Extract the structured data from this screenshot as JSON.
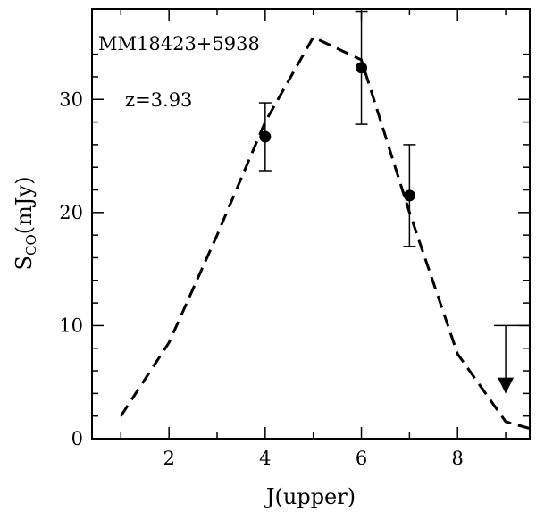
{
  "chart_data": {
    "type": "scatter",
    "xlabel": "J(upper)",
    "ylabel": {
      "main": "S",
      "subscript": "CO",
      "units": "(mJy)"
    },
    "xlim": [
      0.4,
      9.5
    ],
    "ylim": [
      0,
      38
    ],
    "x_ticks": [
      2,
      4,
      6,
      8
    ],
    "y_ticks": [
      0,
      10,
      20,
      30
    ],
    "x_tick_labels": [
      "2",
      "4",
      "6",
      "8"
    ],
    "y_tick_labels": [
      "0",
      "10",
      "20",
      "30"
    ],
    "grid": false,
    "legend": "none",
    "annotations": [
      {
        "text": "MM18423+5938"
      },
      {
        "text": "z=3.93"
      }
    ],
    "series": [
      {
        "kind": "dashed-line",
        "x": [
          1,
          2,
          3,
          4,
          5,
          6,
          7,
          8,
          9,
          9.5
        ],
        "y": [
          2,
          8.5,
          18,
          28,
          35.5,
          33.5,
          20,
          7.5,
          1.5,
          0.9
        ]
      },
      {
        "kind": "points-with-error-bars",
        "points": [
          {
            "x": 4,
            "y": 26.7,
            "err_low": 3,
            "err_high": 3
          },
          {
            "x": 6,
            "y": 32.8,
            "err_low": 5,
            "err_high": 5
          },
          {
            "x": 7,
            "y": 21.5,
            "err_low": 4.5,
            "err_high": 4.5
          }
        ]
      },
      {
        "kind": "upper-limit",
        "points": [
          {
            "x": 9,
            "y": 10,
            "arrow_to": 4.3
          }
        ]
      }
    ]
  },
  "colors": {
    "ink": "#000000",
    "background": "#ffffff"
  }
}
